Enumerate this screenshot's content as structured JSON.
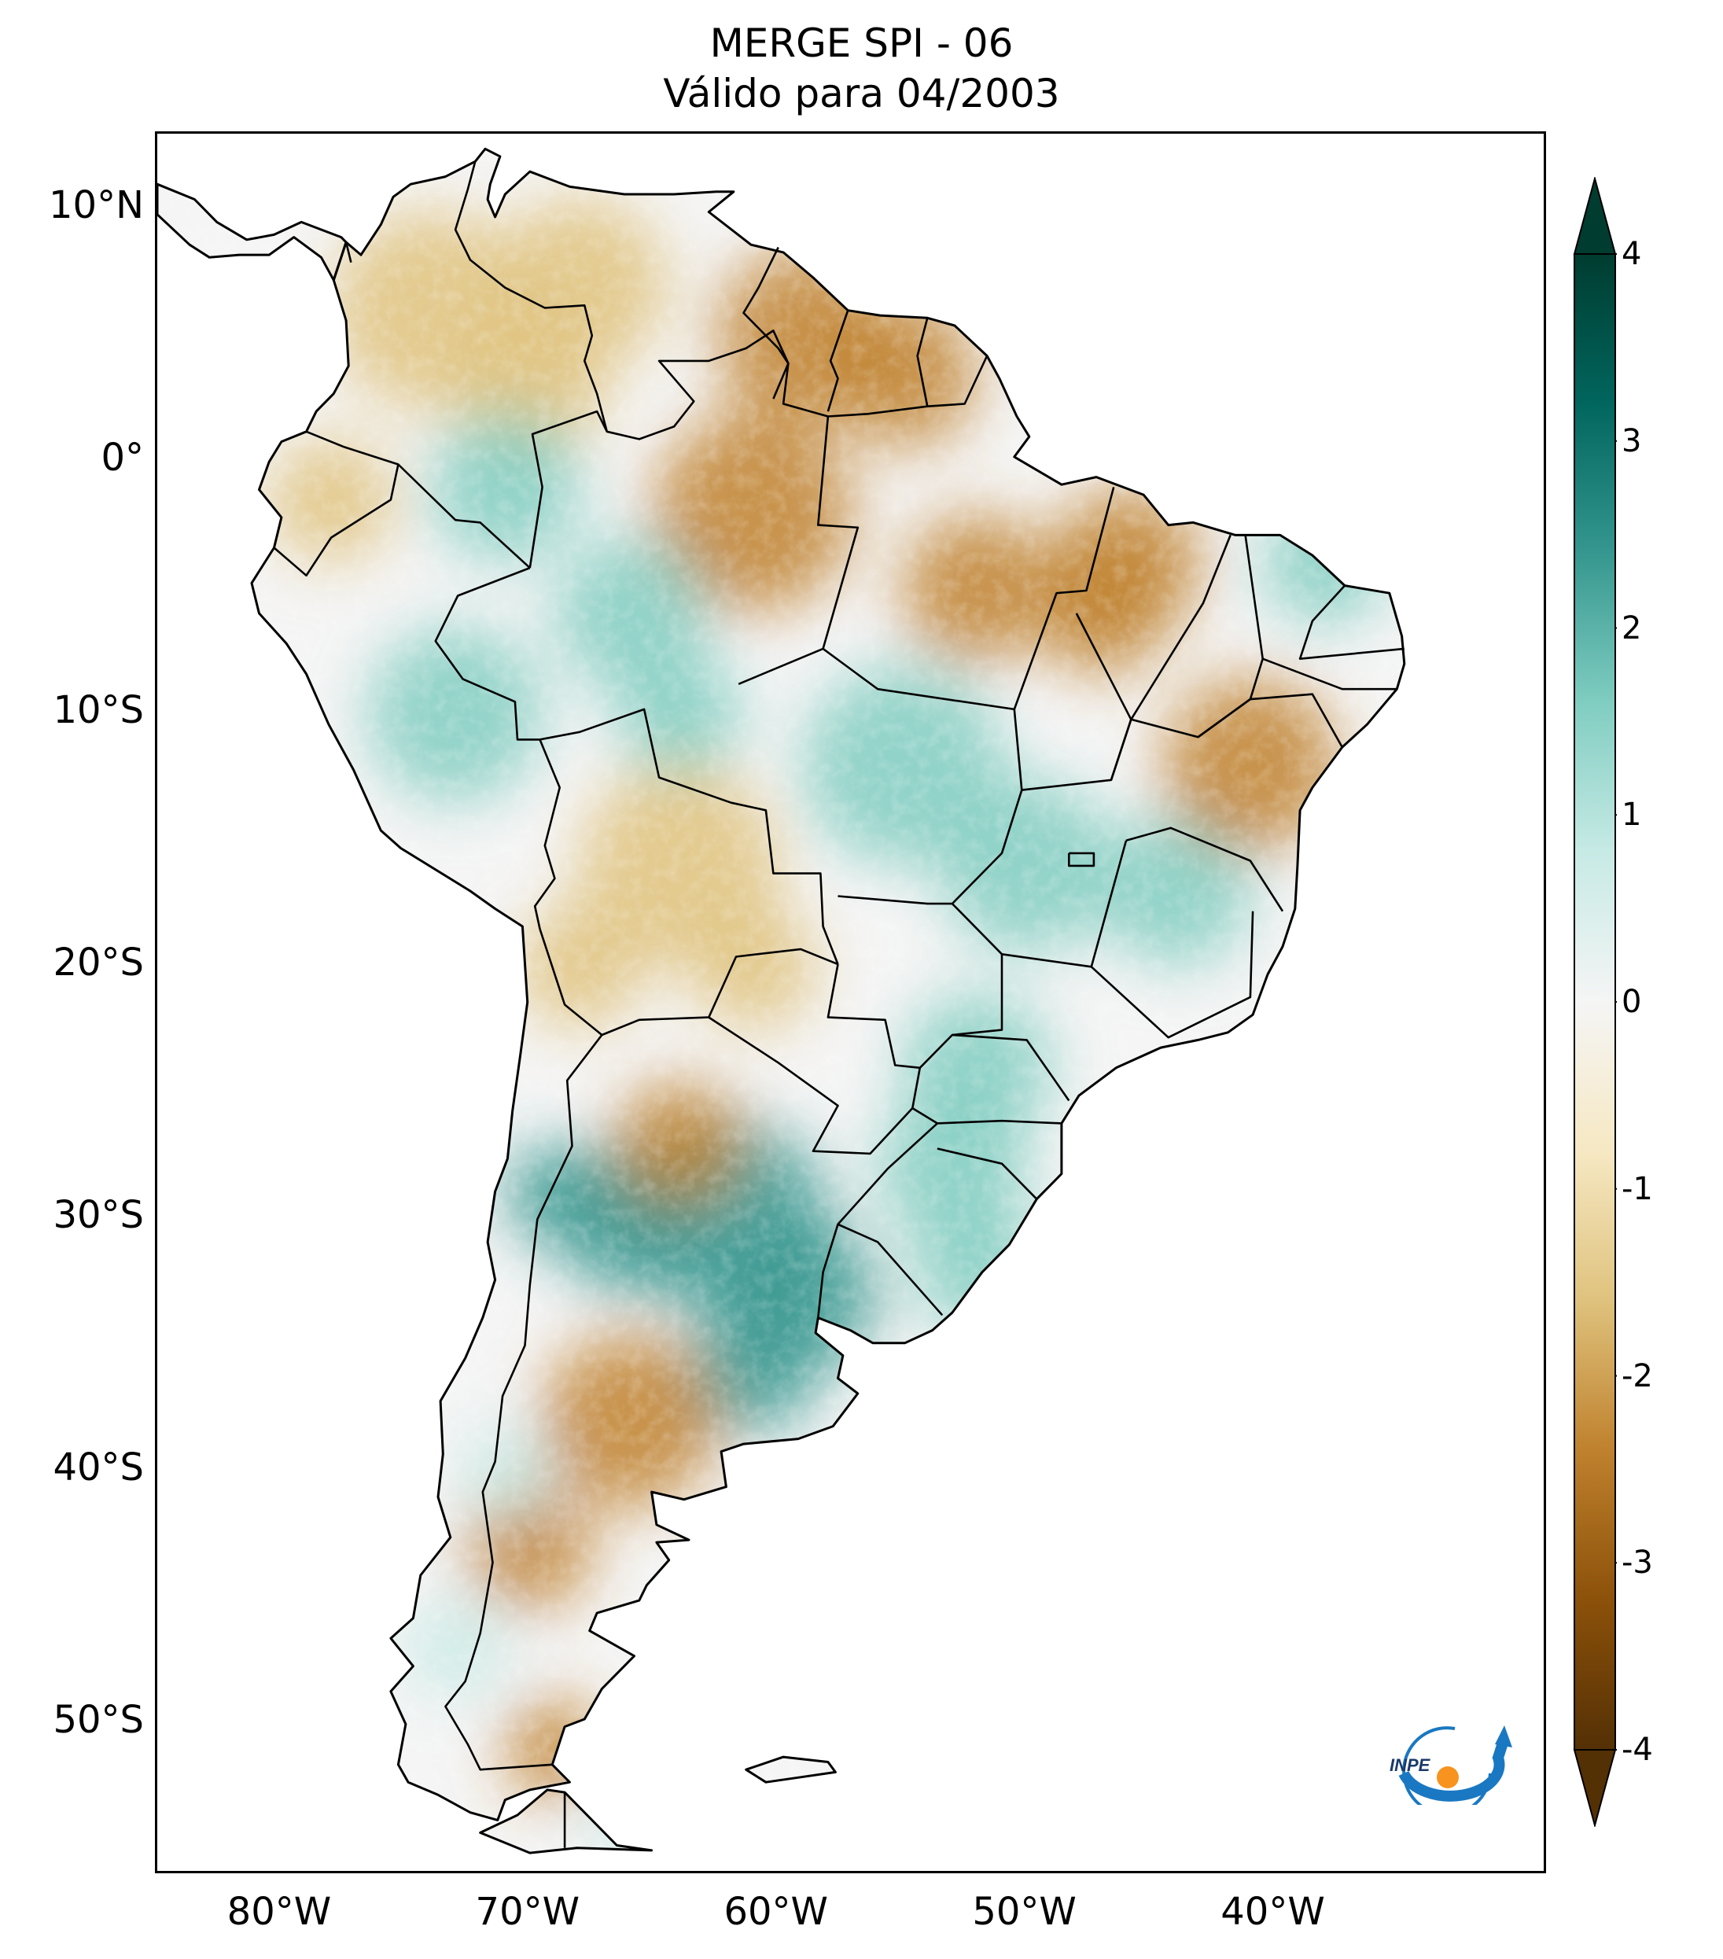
{
  "title": {
    "line1": "MERGE   SPI - 06",
    "line2": "Válido para 04/2003"
  },
  "axes": {
    "lat_labels": [
      "10°N",
      "0°",
      "10°S",
      "20°S",
      "30°S",
      "40°S",
      "50°S"
    ],
    "lat_values": [
      10,
      0,
      -10,
      -20,
      -30,
      -40,
      -50
    ],
    "lon_labels": [
      "80°W",
      "70°W",
      "60°W",
      "50°W",
      "40°W"
    ],
    "lon_values": [
      -80,
      -70,
      -60,
      -50,
      -40
    ],
    "lat_range": [
      -56,
      13
    ],
    "lon_range": [
      -85,
      -29
    ]
  },
  "colorbar": {
    "tick_labels": [
      "4",
      "3",
      "2",
      "1",
      "0",
      "-1",
      "-2",
      "-3",
      "-4"
    ],
    "tick_values": [
      4,
      3,
      2,
      1,
      0,
      -1,
      -2,
      -3,
      -4
    ],
    "range": [
      -4,
      4
    ],
    "extend": "both",
    "colormap": "BrBG",
    "colors": {
      "dry_extreme": "#543005",
      "dry_strong": "#8c510a",
      "dry_moderate": "#bf812d",
      "dry_mild": "#dfc27d",
      "dry_light": "#f6e8c3",
      "neutral": "#f5f5f5",
      "wet_light": "#c7eae5",
      "wet_mild": "#80cdc1",
      "wet_moderate": "#35978f",
      "wet_strong": "#01665e",
      "wet_extreme": "#003c30"
    }
  },
  "logo": {
    "text": "INPE",
    "colors": {
      "arc": "#1a78c2",
      "dot": "#f7931e"
    }
  },
  "map_regions": [
    {
      "name": "colombia-venezuela-dry",
      "spi": -1.5
    },
    {
      "name": "guyanas-north-brazil-dry",
      "spi": -1.7
    },
    {
      "name": "western-amazon-wet",
      "spi": 1.3
    },
    {
      "name": "central-brazil-wet",
      "spi": 1.0
    },
    {
      "name": "bolivia-dry",
      "spi": -1.4
    },
    {
      "name": "bahia-dry",
      "spi": -1.6
    },
    {
      "name": "southern-brazil-wet",
      "spi": 1.4
    },
    {
      "name": "central-argentina-wet",
      "spi": 1.8
    },
    {
      "name": "patagonia-dry",
      "spi": -1.8
    },
    {
      "name": "southern-chile-wet",
      "spi": 0.9
    }
  ]
}
